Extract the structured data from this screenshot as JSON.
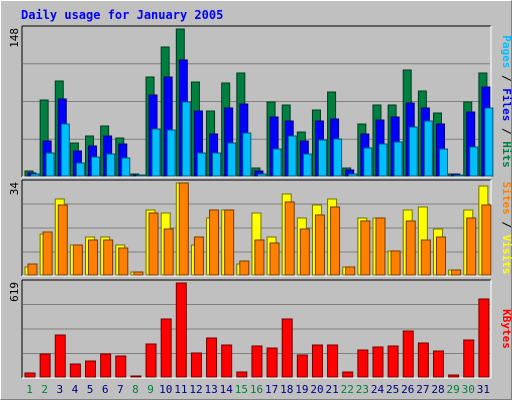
{
  "chart_data": {
    "type": "bar",
    "title": "Daily usage for January 2005",
    "categories": [
      "1",
      "2",
      "3",
      "4",
      "5",
      "6",
      "7",
      "8",
      "9",
      "10",
      "11",
      "12",
      "13",
      "14",
      "15",
      "16",
      "17",
      "18",
      "19",
      "20",
      "21",
      "22",
      "23",
      "24",
      "25",
      "26",
      "27",
      "28",
      "29",
      "30",
      "31"
    ],
    "weekend_days": [
      "1",
      "2",
      "8",
      "9",
      "15",
      "16",
      "22",
      "23",
      "29",
      "30"
    ],
    "grid": true,
    "panels": [
      {
        "id": "hits",
        "ymax_label": "148",
        "ylim": [
          0,
          148
        ],
        "series": [
          {
            "name": "Hits",
            "color": "#008040",
            "values": [
              5,
              77,
              96,
              33,
              40,
              50,
              38,
              2,
              100,
              130,
              148,
              95,
              65,
              94,
              104,
              8,
              75,
              71,
              44,
              66,
              85,
              8,
              52,
              71,
              71,
              107,
              86,
              63,
              2,
              75,
              104
            ]
          },
          {
            "name": "Files",
            "color": "#0000ff",
            "values": [
              3,
              35,
              78,
              25,
              30,
              40,
              32,
              1,
              82,
              100,
              117,
              65,
              42,
              68,
              72,
              5,
              59,
              55,
              35,
              55,
              57,
              6,
              42,
              56,
              59,
              73,
              68,
              52,
              2,
              64,
              90
            ]
          },
          {
            "name": "Pages",
            "color": "#00bfff",
            "values": [
              2,
              23,
              52,
              13,
              19,
              22,
              18,
              1,
              47,
              46,
              74,
              23,
              23,
              33,
              43,
              2,
              27,
              40,
              22,
              36,
              37,
              2,
              28,
              32,
              34,
              49,
              55,
              27,
              1,
              29,
              68
            ]
          }
        ],
        "axis_labels": [
          {
            "text": "Pages",
            "color": "#00bfff"
          },
          {
            "text": " / ",
            "color": "#000000"
          },
          {
            "text": "Files",
            "color": "#0000ff"
          },
          {
            "text": " / ",
            "color": "#000000"
          },
          {
            "text": "Hits",
            "color": "#008040"
          }
        ]
      },
      {
        "id": "visits",
        "ymax_label": "34",
        "ylim": [
          0,
          34
        ],
        "series": [
          {
            "name": "Visits",
            "color": "#ffff00",
            "values": [
              3,
              15,
              28,
              11,
              14,
              14,
              11,
              1,
              24,
              23,
              34,
              11,
              21,
              24,
              4,
              23,
              14,
              30,
              21,
              26,
              28,
              3,
              21,
              21,
              9,
              24,
              25,
              17,
              2,
              24,
              33
            ]
          },
          {
            "name": "Sites",
            "color": "#ff8000",
            "values": [
              4,
              16,
              26,
              11,
              13,
              13,
              10,
              1,
              23,
              17,
              34,
              14,
              24,
              24,
              5,
              13,
              12,
              27,
              17,
              22,
              25,
              3,
              20,
              21,
              9,
              20,
              13,
              14,
              2,
              21,
              26
            ]
          }
        ],
        "axis_labels": [
          {
            "text": "Sites",
            "color": "#ff8000"
          },
          {
            "text": " / ",
            "color": "#000000"
          },
          {
            "text": "Visits",
            "color": "#ffff00"
          }
        ]
      },
      {
        "id": "kbytes",
        "ymax_label": "619",
        "ylim": [
          0,
          619
        ],
        "series": [
          {
            "name": "KBytes",
            "color": "#ff0000",
            "values": [
              25,
              153,
              274,
              85,
              107,
              150,
              138,
              8,
              216,
              381,
              619,
              158,
              257,
              214,
              30,
              205,
              192,
              379,
              142,
              212,
              212,
              33,
              176,
              196,
              204,
              302,
              222,
              168,
              14,
              241,
              516
            ]
          }
        ],
        "axis_labels": [
          {
            "text": "KBytes",
            "color": "#ff0000"
          }
        ]
      }
    ]
  }
}
